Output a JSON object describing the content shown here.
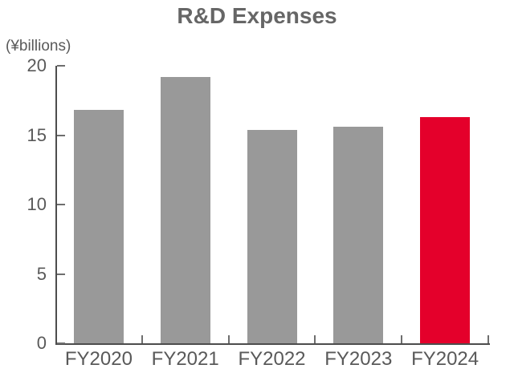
{
  "title": "R&D Expenses",
  "chart_data": {
    "type": "bar",
    "title": "R&D Expenses",
    "unit_label": "(¥billions)",
    "categories": [
      "FY2020",
      "FY2021",
      "FY2022",
      "FY2023",
      "FY2024"
    ],
    "values": [
      16.8,
      19.2,
      15.4,
      15.6,
      16.3
    ],
    "xlabel": "",
    "ylabel": "(¥billions)",
    "ylim": [
      0,
      20
    ],
    "yticks": [
      0,
      5,
      10,
      15,
      20
    ],
    "grid": false,
    "legend": "none",
    "bar_color_default": "#999999",
    "bar_color_highlight": "#e4002b",
    "highlight_index": 4
  },
  "colors": {
    "title_text": "#666666",
    "axis_text": "#595959",
    "axis_line": "#4d4d4d",
    "tick_line": "#6e6e6e",
    "bar_gray": "#999999",
    "bar_red": "#e4002b",
    "background": "#ffffff"
  }
}
